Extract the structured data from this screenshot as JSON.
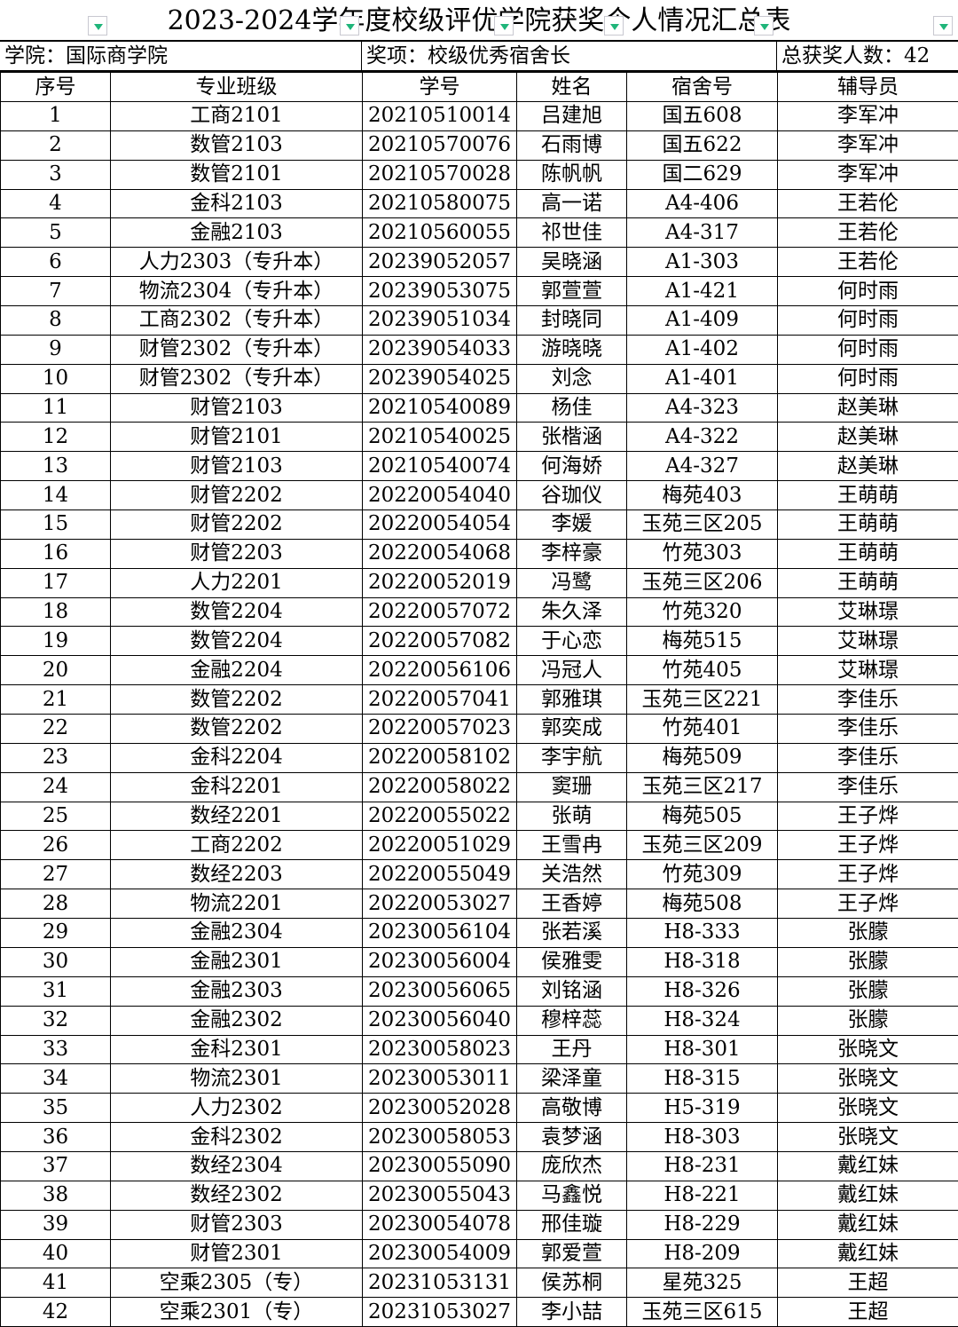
{
  "title": "2023-2024学年度校级评优学院获奖个人情况汇总表",
  "filter_icon": "dropdown-filter-icon",
  "filter_color": "#1fb57a",
  "info": {
    "college": "学院：国际商学院",
    "award": "奖项：校级优秀宿舍长",
    "total": "总获奖人数：42"
  },
  "headers": [
    "序号",
    "专业班级",
    "学号",
    "姓名",
    "宿舍号",
    "辅导员"
  ],
  "rows": [
    [
      "1",
      "工商2101",
      "20210510014",
      "吕建旭",
      "国五608",
      "李军冲"
    ],
    [
      "2",
      "数管2103",
      "20210570076",
      "石雨博",
      "国五622",
      "李军冲"
    ],
    [
      "3",
      "数管2101",
      "20210570028",
      "陈帆帆",
      "国二629",
      "李军冲"
    ],
    [
      "4",
      "金科2103",
      "20210580075",
      "高一诺",
      "A4-406",
      "王若伦"
    ],
    [
      "5",
      "金融2103",
      "20210560055",
      "祁世佳",
      "A4-317",
      "王若伦"
    ],
    [
      "6",
      "人力2303（专升本）",
      "20239052057",
      "吴晓涵",
      "A1-303",
      "王若伦"
    ],
    [
      "7",
      "物流2304（专升本）",
      "20239053075",
      "郭萱萱",
      "A1-421",
      "何时雨"
    ],
    [
      "8",
      "工商2302（专升本）",
      "20239051034",
      "封晓同",
      "A1-409",
      "何时雨"
    ],
    [
      "9",
      "财管2302（专升本）",
      "20239054033",
      "游晓晓",
      "A1-402",
      "何时雨"
    ],
    [
      "10",
      "财管2302（专升本）",
      "20239054025",
      "刘念",
      "A1-401",
      "何时雨"
    ],
    [
      "11",
      "财管2103",
      "20210540089",
      "杨佳",
      "A4-323",
      "赵美琳"
    ],
    [
      "12",
      "财管2101",
      "20210540025",
      "张楷涵",
      "A4-322",
      "赵美琳"
    ],
    [
      "13",
      "财管2103",
      "20210540074",
      "何海娇",
      "A4-327",
      "赵美琳"
    ],
    [
      "14",
      "财管2202",
      "20220054040",
      "谷珈仪",
      "梅苑403",
      "王萌萌"
    ],
    [
      "15",
      "财管2202",
      "20220054054",
      "李媛",
      "玉苑三区205",
      "王萌萌"
    ],
    [
      "16",
      "财管2203",
      "20220054068",
      "李梓豪",
      "竹苑303",
      "王萌萌"
    ],
    [
      "17",
      "人力2201",
      "20220052019",
      "冯鹭",
      "玉苑三区206",
      "王萌萌"
    ],
    [
      "18",
      "数管2204",
      "20220057072",
      "朱久泽",
      "竹苑320",
      "艾琳璟"
    ],
    [
      "19",
      "数管2204",
      "20220057082",
      "于心恋",
      "梅苑515",
      "艾琳璟"
    ],
    [
      "20",
      "金融2204",
      "20220056106",
      "冯冠人",
      "竹苑405",
      "艾琳璟"
    ],
    [
      "21",
      "数管2202",
      "20220057041",
      "郭雅琪",
      "玉苑三区221",
      "李佳乐"
    ],
    [
      "22",
      "数管2202",
      "20220057023",
      "郭奕成",
      "竹苑401",
      "李佳乐"
    ],
    [
      "23",
      "金科2204",
      "20220058102",
      "李宇航",
      "梅苑509",
      "李佳乐"
    ],
    [
      "24",
      "金科2201",
      "20220058022",
      "窦珊",
      "玉苑三区217",
      "李佳乐"
    ],
    [
      "25",
      "数经2201",
      "20220055022",
      "张萌",
      "梅苑505",
      "王子烨"
    ],
    [
      "26",
      "工商2202",
      "20220051029",
      "王雪冉",
      "玉苑三区209",
      "王子烨"
    ],
    [
      "27",
      "数经2203",
      "20220055049",
      "关浩然",
      "竹苑309",
      "王子烨"
    ],
    [
      "28",
      "物流2201",
      "20220053027",
      "王香婷",
      "梅苑508",
      "王子烨"
    ],
    [
      "29",
      "金融2304",
      "20230056104",
      "张若溪",
      "H8-333",
      "张朦"
    ],
    [
      "30",
      "金融2301",
      "20230056004",
      "侯雅雯",
      "H8-318",
      "张朦"
    ],
    [
      "31",
      "金融2303",
      "20230056065",
      "刘铭涵",
      "H8-326",
      "张朦"
    ],
    [
      "32",
      "金融2302",
      "20230056040",
      "穆梓蕊",
      "H8-324",
      "张朦"
    ],
    [
      "33",
      "金科2301",
      "20230058023",
      "王丹",
      "H8-301",
      "张晓文"
    ],
    [
      "34",
      "物流2301",
      "20230053011",
      "梁泽童",
      "H8-315",
      "张晓文"
    ],
    [
      "35",
      "人力2302",
      "20230052028",
      "高敬博",
      "H5-319",
      "张晓文"
    ],
    [
      "36",
      "金科2302",
      "20230058053",
      "袁梦涵",
      "H8-303",
      "张晓文"
    ],
    [
      "37",
      "数经2304",
      "20230055090",
      "庞欣杰",
      "H8-231",
      "戴红妹"
    ],
    [
      "38",
      "数经2302",
      "20230055043",
      "马鑫悦",
      "H8-221",
      "戴红妹"
    ],
    [
      "39",
      "财管2303",
      "20230054078",
      "邢佳璇",
      "H8-229",
      "戴红妹"
    ],
    [
      "40",
      "财管2301",
      "20230054009",
      "郭爱萱",
      "H8-209",
      "戴红妹"
    ],
    [
      "41",
      "空乘2305（专）",
      "20231053131",
      "侯苏桐",
      "星苑325",
      "王超"
    ],
    [
      "42",
      "空乘2301（专）",
      "20231053027",
      "李小喆",
      "玉苑三区615",
      "王超"
    ]
  ]
}
